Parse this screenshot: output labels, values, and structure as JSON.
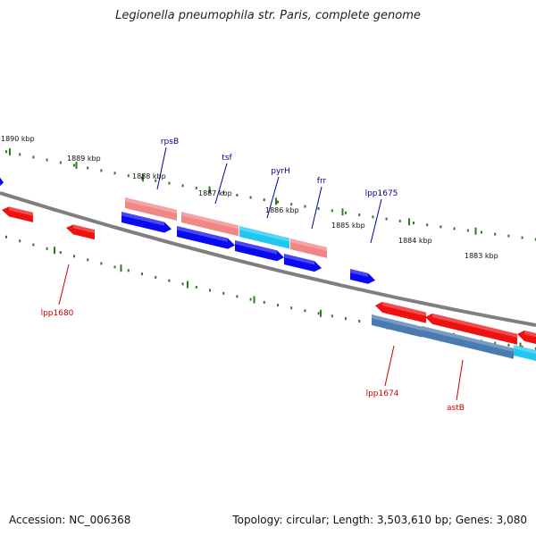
{
  "title": "Legionella pneumophila str. Paris, complete genome",
  "footer": {
    "accession": "Accession: NC_006368",
    "summary": "Topology: circular; Length: 3,503,610 bp; Genes: 3,080"
  },
  "colors": {
    "backbone": "#7f7f7f",
    "ticks": "#2e7d22",
    "tick_label": "#111111",
    "forward_cds": "#ee1111",
    "forward_rna": "#f08686",
    "reverse_cds": "#0a0af0",
    "reverse_rna": "#4a7bb0",
    "highlight": "#20c8f0",
    "label_forward": "#cc0000",
    "label_reverse": "#000099"
  },
  "ticks": [
    {
      "label": "1890 kbp"
    },
    {
      "label": "1889 kbp"
    },
    {
      "label": "1888 kbp"
    },
    {
      "label": "1887 kbp"
    },
    {
      "label": "1886 kbp"
    },
    {
      "label": "1885 kbp"
    },
    {
      "label": "1884 kbp"
    },
    {
      "label": "1883 kbp"
    }
  ],
  "gene_labels": [
    {
      "name": "rpsB",
      "strand": "reverse"
    },
    {
      "name": "tsf",
      "strand": "reverse"
    },
    {
      "name": "pyrH",
      "strand": "reverse"
    },
    {
      "name": "frr",
      "strand": "reverse"
    },
    {
      "name": "lpp1675",
      "strand": "reverse"
    },
    {
      "name": "lpp1680",
      "strand": "forward"
    },
    {
      "name": "lpp1674",
      "strand": "forward"
    },
    {
      "name": "astB",
      "strand": "forward"
    }
  ]
}
